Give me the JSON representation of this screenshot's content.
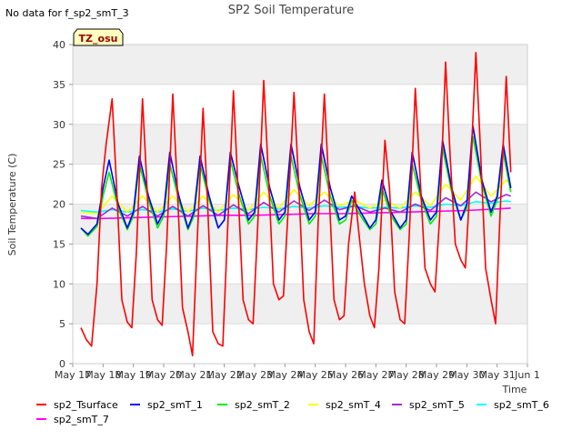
{
  "header": {
    "title": "SP2 Soil Temperature",
    "no_data_note": "No data for f_sp2_smT_3",
    "site_badge": "TZ_osu"
  },
  "colors": {
    "background_band": "#efefef",
    "badge_fill": "#ffffc0",
    "badge_text": "#990000"
  },
  "chart_data": {
    "type": "line",
    "title": "SP2 Soil Temperature",
    "xlabel": "Time",
    "ylabel": "Soil Temperature (C)",
    "ylim": [
      0,
      40
    ],
    "yticks": [
      0,
      5,
      10,
      15,
      20,
      25,
      30,
      35,
      40
    ],
    "xlim": [
      0,
      15
    ],
    "xticks": [
      {
        "value": 0,
        "label": "May 17"
      },
      {
        "value": 1,
        "label": "May 18"
      },
      {
        "value": 2,
        "label": "May 19"
      },
      {
        "value": 3,
        "label": "May 20"
      },
      {
        "value": 4,
        "label": "May 21"
      },
      {
        "value": 5,
        "label": "May 22"
      },
      {
        "value": 6,
        "label": "May 23"
      },
      {
        "value": 7,
        "label": "May 24"
      },
      {
        "value": 8,
        "label": "May 25"
      },
      {
        "value": 9,
        "label": "May 26"
      },
      {
        "value": 10,
        "label": "May 27"
      },
      {
        "value": 11,
        "label": "May 28"
      },
      {
        "value": 12,
        "label": "May 29"
      },
      {
        "value": 13,
        "label": "May 30"
      },
      {
        "value": 14,
        "label": "May 31"
      },
      {
        "value": 15,
        "label": "Jun 1"
      }
    ],
    "grid": true,
    "legend_position": "bottom",
    "series": [
      {
        "name": "sp2_Tsurface",
        "color": "#ff0000",
        "x": [
          0.27,
          0.45,
          0.62,
          0.8,
          0.95,
          1.1,
          1.3,
          1.45,
          1.62,
          1.8,
          1.95,
          2.1,
          2.3,
          2.45,
          2.62,
          2.8,
          2.95,
          3.1,
          3.3,
          3.45,
          3.62,
          3.8,
          3.95,
          4.1,
          4.3,
          4.45,
          4.62,
          4.8,
          4.95,
          5.1,
          5.3,
          5.45,
          5.62,
          5.8,
          5.95,
          6.1,
          6.3,
          6.45,
          6.62,
          6.8,
          6.95,
          7.1,
          7.3,
          7.45,
          7.62,
          7.8,
          7.95,
          8.1,
          8.3,
          8.45,
          8.62,
          8.8,
          8.95,
          9.1,
          9.3,
          9.45,
          9.62,
          9.8,
          9.95,
          10.1,
          10.3,
          10.45,
          10.62,
          10.8,
          10.95,
          11.1,
          11.3,
          11.45,
          11.62,
          11.8,
          11.95,
          12.1,
          12.3,
          12.45,
          12.62,
          12.8,
          12.95,
          13.1,
          13.3,
          13.45,
          13.62,
          13.8,
          13.95,
          14.1,
          14.3,
          14.45
        ],
        "values": [
          4.5,
          3,
          2.2,
          10,
          22,
          27.5,
          33.2,
          22,
          8,
          5.2,
          4.5,
          14,
          33.2,
          22,
          8,
          5.5,
          4.8,
          15,
          33.8,
          22,
          7,
          4,
          1,
          15,
          32,
          20,
          4,
          2.5,
          2.2,
          16,
          34.2,
          22,
          8,
          5.5,
          5,
          17,
          35.5,
          24,
          10,
          8,
          8.5,
          19,
          34,
          23,
          8,
          4,
          2.5,
          18,
          33.8,
          22,
          8,
          5.5,
          6,
          15,
          21.5,
          16,
          10,
          6,
          4.5,
          12,
          28,
          22,
          9,
          5.5,
          5,
          16,
          34.5,
          24,
          12,
          10,
          9,
          18,
          37.8,
          26,
          15,
          13,
          12,
          22,
          39,
          27,
          12,
          8,
          5,
          19,
          36,
          24
        ]
      },
      {
        "name": "sp2_smT_1",
        "color": "#0000ff",
        "x": [
          0.27,
          0.5,
          0.8,
          1.0,
          1.2,
          1.5,
          1.8,
          2.0,
          2.2,
          2.5,
          2.8,
          3.0,
          3.2,
          3.5,
          3.8,
          4.0,
          4.2,
          4.5,
          4.8,
          5.0,
          5.2,
          5.5,
          5.8,
          6.0,
          6.2,
          6.5,
          6.8,
          7.0,
          7.2,
          7.5,
          7.8,
          8.0,
          8.2,
          8.5,
          8.8,
          9.0,
          9.2,
          9.5,
          9.8,
          10.0,
          10.2,
          10.5,
          10.8,
          11.0,
          11.2,
          11.5,
          11.8,
          12.0,
          12.2,
          12.5,
          12.8,
          13.0,
          13.2,
          13.5,
          13.8,
          14.0,
          14.2,
          14.45
        ],
        "values": [
          17,
          16.2,
          17.5,
          22,
          25.5,
          20,
          17,
          19,
          26,
          21,
          17.5,
          19,
          26.5,
          21,
          17,
          19,
          26,
          21,
          17,
          18,
          26.5,
          22,
          18,
          19,
          27.5,
          22,
          18,
          19,
          27.5,
          22,
          18,
          19,
          27.5,
          22,
          18,
          18.5,
          21,
          19,
          17,
          18,
          23,
          19,
          17,
          18,
          26.5,
          21,
          18,
          19,
          28,
          22,
          18,
          20,
          29.8,
          23,
          19,
          21,
          27.5,
          22
        ]
      },
      {
        "name": "sp2_smT_2",
        "color": "#00ee00",
        "x": [
          0.27,
          0.5,
          0.8,
          1.0,
          1.2,
          1.5,
          1.8,
          2.0,
          2.2,
          2.5,
          2.8,
          3.0,
          3.2,
          3.5,
          3.8,
          4.0,
          4.2,
          4.5,
          4.8,
          5.0,
          5.2,
          5.5,
          5.8,
          6.0,
          6.2,
          6.5,
          6.8,
          7.0,
          7.2,
          7.5,
          7.8,
          8.0,
          8.2,
          8.5,
          8.8,
          9.0,
          9.2,
          9.5,
          9.8,
          10.0,
          10.2,
          10.5,
          10.8,
          11.0,
          11.2,
          11.5,
          11.8,
          12.0,
          12.2,
          12.5,
          12.8,
          13.0,
          13.2,
          13.5,
          13.8,
          14.0,
          14.2,
          14.45
        ],
        "values": [
          17,
          16,
          17.2,
          21,
          24,
          19.5,
          16.8,
          18.5,
          25,
          20.5,
          17,
          18.5,
          25,
          20.5,
          16.8,
          18.5,
          25,
          20.5,
          17,
          18,
          25.5,
          21,
          17.5,
          18.5,
          26,
          21,
          17.5,
          18.5,
          26,
          21,
          17.5,
          18.5,
          26,
          21,
          17.5,
          18,
          20.5,
          18.5,
          16.8,
          17.5,
          22,
          18.5,
          16.8,
          17.5,
          25,
          20.5,
          17.5,
          18.5,
          27,
          21.5,
          18,
          19.5,
          28.5,
          22.5,
          18.5,
          20.5,
          26.5,
          21.5
        ]
      },
      {
        "name": "sp2_smT_4",
        "color": "#ffff00",
        "x": [
          0.27,
          0.8,
          1.3,
          1.8,
          2.3,
          2.8,
          3.3,
          3.8,
          4.3,
          4.8,
          5.3,
          5.8,
          6.3,
          6.8,
          7.3,
          7.8,
          8.3,
          8.8,
          9.3,
          9.8,
          10.3,
          10.8,
          11.3,
          11.8,
          12.3,
          12.8,
          13.3,
          13.8,
          14.3,
          14.45
        ],
        "values": [
          19,
          18.8,
          21,
          19,
          21,
          19,
          21,
          19,
          21,
          19,
          21.2,
          19.2,
          21.5,
          19.5,
          21.8,
          19.8,
          21.5,
          19.8,
          20.5,
          19.5,
          20.5,
          19.5,
          21.5,
          19.8,
          22.5,
          20.5,
          23.5,
          21,
          23,
          22.5
        ]
      },
      {
        "name": "sp2_smT_5",
        "color": "#9a32cd",
        "x": [
          0.27,
          0.8,
          1.3,
          1.8,
          2.3,
          2.8,
          3.3,
          3.8,
          4.3,
          4.8,
          5.3,
          5.8,
          6.3,
          6.8,
          7.3,
          7.8,
          8.3,
          8.8,
          9.3,
          9.8,
          10.3,
          10.8,
          11.3,
          11.8,
          12.3,
          12.8,
          13.3,
          13.8,
          14.3,
          14.45
        ],
        "values": [
          18.5,
          18.2,
          19.5,
          18.5,
          19.7,
          18.5,
          19.7,
          18.5,
          19.8,
          18.6,
          19.9,
          18.8,
          20.2,
          19,
          20.4,
          19.2,
          20.5,
          19.3,
          19.8,
          19,
          19.5,
          19,
          20,
          19.2,
          20.8,
          19.8,
          21.5,
          20.3,
          21.2,
          21
        ]
      },
      {
        "name": "sp2_smT_6",
        "color": "#00ffff",
        "x": [
          0.27,
          0.8,
          1.3,
          1.8,
          2.3,
          2.8,
          3.3,
          3.8,
          4.3,
          4.8,
          5.3,
          5.8,
          6.3,
          6.8,
          7.3,
          7.8,
          8.3,
          8.8,
          9.3,
          9.8,
          10.3,
          10.8,
          11.3,
          11.8,
          12.3,
          12.8,
          13.3,
          13.8,
          14.3,
          14.45
        ],
        "values": [
          19.2,
          19,
          19.3,
          19,
          19.3,
          19,
          19.4,
          19.1,
          19.5,
          19.2,
          19.5,
          19.3,
          19.6,
          19.4,
          19.7,
          19.5,
          19.8,
          19.6,
          19.7,
          19.5,
          19.6,
          19.5,
          19.8,
          19.6,
          20,
          19.8,
          20.3,
          20.1,
          20.4,
          20.3
        ]
      },
      {
        "name": "sp2_smT_7",
        "color": "#ff00ff",
        "x": [
          0.27,
          1,
          2,
          3,
          4,
          5,
          6,
          7,
          8,
          9,
          10,
          11,
          12,
          13,
          14,
          14.45
        ],
        "values": [
          18.2,
          18.2,
          18.3,
          18.4,
          18.5,
          18.6,
          18.6,
          18.7,
          18.8,
          18.8,
          18.9,
          19,
          19.1,
          19.2,
          19.4,
          19.5
        ]
      }
    ]
  }
}
